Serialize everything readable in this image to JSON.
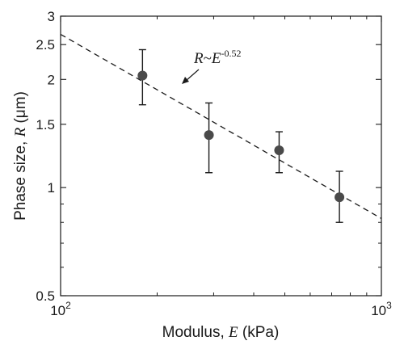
{
  "chart_data": {
    "type": "scatter",
    "xscale": "log",
    "yscale": "log",
    "xlim": [
      100,
      1000
    ],
    "ylim": [
      0.5,
      3
    ],
    "grid": false,
    "legend": "none",
    "xlabel": {
      "text": "Modulus, ",
      "var": "E",
      "unit": " (kPa)"
    },
    "ylabel": {
      "text": "Phase size, ",
      "var": "R",
      "unit": " (μm)"
    },
    "xticks": [
      {
        "value": 100,
        "base": "10",
        "exp": "2"
      },
      {
        "value": 1000,
        "base": "10",
        "exp": "3"
      }
    ],
    "yticks": [
      {
        "value": 0.5,
        "label": "0.5"
      },
      {
        "value": 1,
        "label": "1"
      },
      {
        "value": 1.5,
        "label": "1.5"
      },
      {
        "value": 2,
        "label": "2"
      },
      {
        "value": 2.5,
        "label": "2.5"
      },
      {
        "value": 3,
        "label": "3"
      }
    ],
    "points": [
      {
        "x": 180,
        "y": 2.05,
        "y_low": 1.7,
        "y_high": 2.42
      },
      {
        "x": 290,
        "y": 1.4,
        "y_low": 1.1,
        "y_high": 1.72
      },
      {
        "x": 480,
        "y": 1.27,
        "y_low": 1.1,
        "y_high": 1.43
      },
      {
        "x": 740,
        "y": 0.94,
        "y_low": 0.8,
        "y_high": 1.11
      }
    ],
    "fit_line": {
      "style": "dashed",
      "exponent": -0.52,
      "x": [
        100,
        1000
      ],
      "y": [
        2.67,
        0.82
      ]
    },
    "annotation": {
      "prefix": "R",
      "tilde": "~",
      "base": "E",
      "exp": "-0.52"
    },
    "colors": {
      "marker": "#4a4a4a",
      "line": "#1a1a1a",
      "text": "#1a1a1a"
    }
  }
}
